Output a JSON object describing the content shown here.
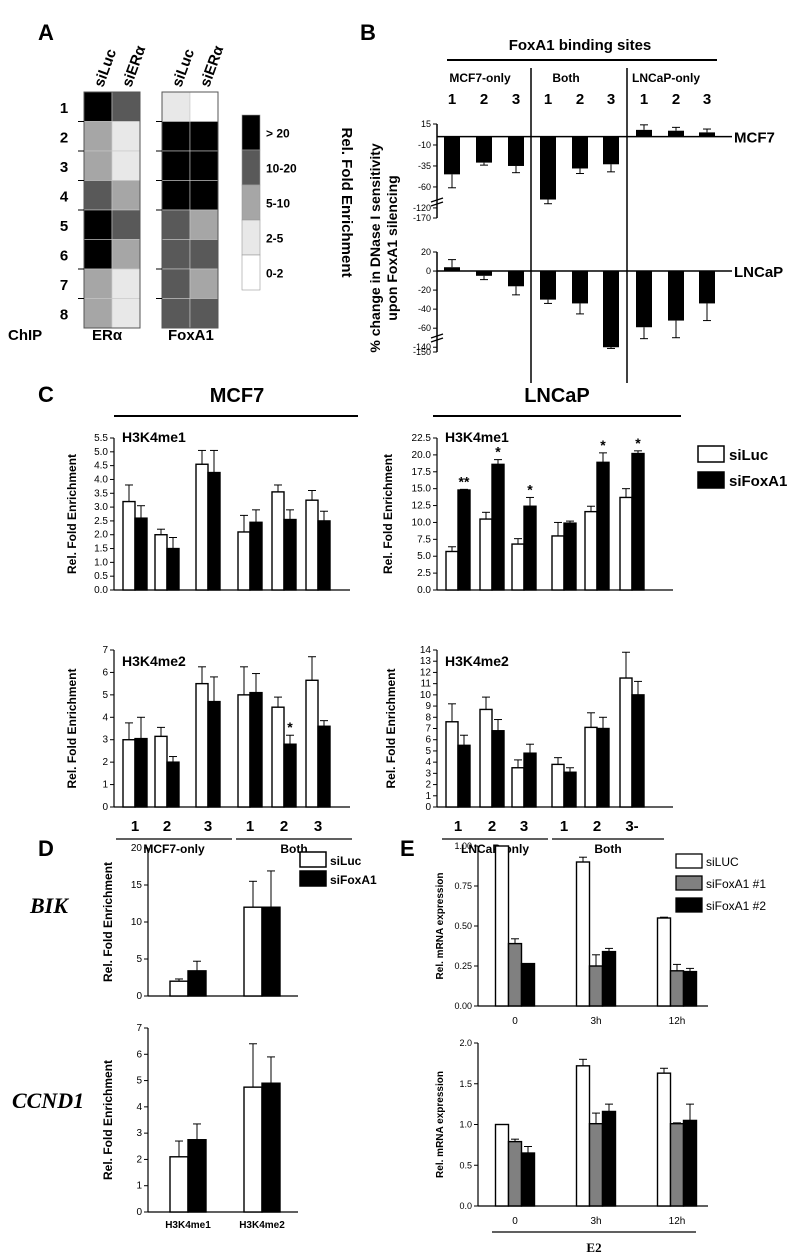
{
  "panel_letters": {
    "a": "A",
    "b": "B",
    "c": "C",
    "d": "D",
    "e": "E"
  },
  "colors": {
    "black": "#000000",
    "white": "#ffffff",
    "grey": "#808080",
    "heat_levels": [
      "#ffffff",
      "#e8e8e8",
      "#a6a6a6",
      "#595959",
      "#000000"
    ]
  },
  "chart_data": [
    {
      "id": "A",
      "type": "heatmap",
      "rows": [
        "1",
        "2",
        "3",
        "4",
        "5",
        "6",
        "7",
        "8"
      ],
      "col_labels": [
        "siLuc",
        "siERα",
        "siLuc",
        "siERα"
      ],
      "group_labels": [
        "ChIP",
        "ERα",
        "FoxA1"
      ],
      "legend_title": "Rel. Fold Enrichment",
      "legend_labels": [
        "> 20",
        "10-20",
        "5-10",
        "2-5",
        "0-2"
      ],
      "erα_levels": [
        [
          4,
          3
        ],
        [
          2,
          1
        ],
        [
          2,
          1
        ],
        [
          3,
          2
        ],
        [
          4,
          3
        ],
        [
          4,
          2
        ],
        [
          2,
          1
        ],
        [
          2,
          1
        ]
      ],
      "foxa1_levels": [
        [
          1,
          0
        ],
        [
          4,
          4
        ],
        [
          4,
          4
        ],
        [
          4,
          4
        ],
        [
          3,
          2
        ],
        [
          3,
          3
        ],
        [
          3,
          2
        ],
        [
          3,
          3
        ]
      ]
    },
    {
      "id": "B",
      "type": "bar",
      "title": "FoxA1 binding sites",
      "groups": [
        "MCF7-only",
        "Both",
        "LNCaP-only"
      ],
      "categories": [
        "1",
        "2",
        "3",
        "1",
        "2",
        "3",
        "1",
        "2",
        "3"
      ],
      "ylabel": "% change in DNase I sensitivity upon FoxA1 silencing",
      "mcf7": {
        "name": "MCF7",
        "yticks": [
          "15",
          "-10",
          "-35",
          "-60",
          "-120",
          "-170"
        ],
        "tick_values": [
          15,
          -10,
          -35,
          -60,
          -85,
          -97
        ],
        "values": [
          -45,
          -31,
          -35,
          -120,
          -38,
          -33,
          8,
          7,
          5
        ],
        "errors": [
          16,
          3,
          8,
          20,
          6,
          9,
          6,
          4,
          4
        ]
      },
      "lncap": {
        "name": "LNCaP",
        "yticks": [
          "20",
          "0",
          "-20",
          "-40",
          "-60",
          "-140",
          "-150"
        ],
        "tick_values": [
          20,
          0,
          -20,
          -40,
          -60,
          -80,
          -85
        ],
        "values": [
          4,
          -5,
          -16,
          -30,
          -34,
          -140,
          -59,
          -52,
          -34
        ],
        "errors": [
          8,
          4,
          9,
          4,
          11,
          5,
          12,
          18,
          18
        ]
      }
    },
    {
      "id": "C-MCF7-H3K4me1",
      "type": "bar",
      "title": "MCF7",
      "mark": "H3K4me1",
      "ylabel": "Rel. Fold Enrichment",
      "ylim": [
        0,
        5.5
      ],
      "yticks": [
        "0.0",
        "0.5",
        "1.0",
        "1.5",
        "2.0",
        "2.5",
        "3.0",
        "3.5",
        "4.0",
        "4.5",
        "5.0",
        "5.5"
      ],
      "series": [
        {
          "name": "siLuc",
          "values": [
            3.2,
            2.0,
            4.55,
            2.1,
            3.55,
            3.25
          ],
          "errors": [
            0.6,
            0.2,
            0.5,
            0.6,
            0.25,
            0.35
          ]
        },
        {
          "name": "siFoxA1",
          "values": [
            2.6,
            1.5,
            4.25,
            2.45,
            2.55,
            2.5
          ],
          "errors": [
            0.45,
            0.4,
            0.8,
            0.45,
            0.35,
            0.35
          ]
        }
      ],
      "annotations": [
        "",
        "",
        "",
        "",
        "",
        ""
      ]
    },
    {
      "id": "C-MCF7-H3K4me2",
      "type": "bar",
      "mark": "H3K4me2",
      "ylabel": "Rel. Fold Enrichment",
      "ylim": [
        0,
        7
      ],
      "yticks": [
        "0",
        "1",
        "2",
        "3",
        "4",
        "5",
        "6",
        "7"
      ],
      "categories": [
        "1",
        "2",
        "3",
        "1",
        "2",
        "3"
      ],
      "groups": [
        "MCF7-only",
        "Both"
      ],
      "series": [
        {
          "name": "siLuc",
          "values": [
            3.0,
            3.15,
            5.5,
            5.0,
            4.45,
            5.65
          ],
          "errors": [
            0.75,
            0.4,
            0.75,
            1.25,
            0.45,
            1.05
          ]
        },
        {
          "name": "siFoxA1",
          "values": [
            3.05,
            2.0,
            4.7,
            5.1,
            2.8,
            3.6
          ],
          "errors": [
            0.95,
            0.25,
            1.1,
            0.85,
            0.4,
            0.25
          ]
        }
      ],
      "annotations": [
        "",
        "",
        "",
        "",
        "*",
        ""
      ]
    },
    {
      "id": "C-LNCaP-H3K4me1",
      "type": "bar",
      "title": "LNCaP",
      "mark": "H3K4me1",
      "ylabel": "Rel. Fold Enrichment",
      "ylim": [
        0,
        22.5
      ],
      "yticks": [
        "0.0",
        "2.5",
        "5.0",
        "7.5",
        "10.0",
        "12.5",
        "15.0",
        "17.5",
        "20.0",
        "22.5"
      ],
      "series": [
        {
          "name": "siLuc",
          "values": [
            5.7,
            10.5,
            6.8,
            8.0,
            11.6,
            13.7
          ],
          "errors": [
            0.7,
            1.0,
            0.8,
            2.0,
            0.8,
            1.3
          ]
        },
        {
          "name": "siFoxA1",
          "values": [
            14.8,
            18.6,
            12.4,
            9.9,
            18.9,
            20.2
          ],
          "errors": [
            0.1,
            0.7,
            1.3,
            0.3,
            1.4,
            0.4
          ]
        }
      ],
      "annotations": [
        "**",
        "*",
        "*",
        "",
        "*",
        "*"
      ]
    },
    {
      "id": "C-LNCaP-H3K4me2",
      "type": "bar",
      "mark": "H3K4me2",
      "ylabel": "Rel. Fold Enrichment",
      "ylim": [
        0,
        14
      ],
      "yticks": [
        "0",
        "1",
        "2",
        "3",
        "4",
        "5",
        "6",
        "7",
        "8",
        "9",
        "10",
        "11",
        "12",
        "13",
        "14"
      ],
      "categories": [
        "1",
        "2",
        "3",
        "1",
        "2",
        "3-"
      ],
      "groups": [
        "LNCaP-only",
        "Both"
      ],
      "series": [
        {
          "name": "siLuc",
          "values": [
            7.6,
            8.7,
            3.5,
            3.8,
            7.1,
            11.5
          ],
          "errors": [
            1.6,
            1.1,
            0.7,
            0.6,
            1.3,
            2.3
          ]
        },
        {
          "name": "siFoxA1",
          "values": [
            5.5,
            6.8,
            4.8,
            3.1,
            7.0,
            10.0
          ],
          "errors": [
            0.9,
            1.0,
            0.8,
            0.4,
            1.0,
            1.2
          ]
        }
      ],
      "annotations": [
        "",
        "",
        "",
        "",
        "",
        ""
      ]
    },
    {
      "id": "D-BIK",
      "type": "bar",
      "gene": "BIK",
      "ylabel": "Rel. Fold Enrichment",
      "ylim": [
        0,
        20
      ],
      "yticks": [
        "0",
        "5",
        "10",
        "15",
        "20"
      ],
      "series": [
        {
          "name": "siLuc",
          "values": [
            2.0,
            12.0
          ],
          "errors": [
            0.3,
            3.5
          ]
        },
        {
          "name": "siFoxA1",
          "values": [
            3.4,
            12.0
          ],
          "errors": [
            1.3,
            4.9
          ]
        }
      ]
    },
    {
      "id": "D-CCND1",
      "type": "bar",
      "gene": "CCND1",
      "categories": [
        "H3K4me1",
        "H3K4me2"
      ],
      "ylabel": "Rel. Fold Enrichment",
      "ylim": [
        0,
        7
      ],
      "yticks": [
        "0",
        "1",
        "2",
        "3",
        "4",
        "5",
        "6",
        "7"
      ],
      "series": [
        {
          "name": "siLuc",
          "values": [
            2.1,
            4.75
          ],
          "errors": [
            0.6,
            1.65
          ]
        },
        {
          "name": "siFoxA1",
          "values": [
            2.75,
            4.9
          ],
          "errors": [
            0.6,
            1.0
          ]
        }
      ]
    },
    {
      "id": "E-top",
      "type": "bar",
      "ylabel": "Rel. mRNA expression",
      "ylim": [
        0,
        1.0
      ],
      "yticks": [
        "0.00",
        "0.25",
        "0.50",
        "0.75",
        "1.00"
      ],
      "series": [
        {
          "name": "siLUC",
          "values": [
            1.0,
            0.9,
            0.55
          ],
          "errors": [
            0.0,
            0.03,
            0.005
          ]
        },
        {
          "name": "siFoxA1 #1",
          "values": [
            0.39,
            0.25,
            0.22
          ],
          "errors": [
            0.03,
            0.07,
            0.04
          ]
        },
        {
          "name": "siFoxA1 #2",
          "values": [
            0.265,
            0.34,
            0.215
          ],
          "errors": [
            0.0,
            0.02,
            0.02
          ]
        }
      ],
      "categories": [
        "0",
        "3h",
        "12h"
      ]
    },
    {
      "id": "E-bottom",
      "type": "bar",
      "ylabel": "Rel. mRNA expression",
      "ylim": [
        0,
        2.0
      ],
      "yticks": [
        "0.0",
        "0.5",
        "1.0",
        "1.5",
        "2.0"
      ],
      "categories": [
        "0",
        "3h",
        "12h"
      ],
      "xlabel": "E2",
      "series": [
        {
          "name": "siLUC",
          "values": [
            1.0,
            1.72,
            1.63
          ],
          "errors": [
            0.0,
            0.08,
            0.06
          ]
        },
        {
          "name": "siFoxA1 #1",
          "values": [
            0.79,
            1.01,
            1.01
          ],
          "errors": [
            0.03,
            0.13,
            0.01
          ]
        },
        {
          "name": "siFoxA1 #2",
          "values": [
            0.65,
            1.16,
            1.05
          ],
          "errors": [
            0.08,
            0.09,
            0.2
          ]
        }
      ]
    }
  ]
}
